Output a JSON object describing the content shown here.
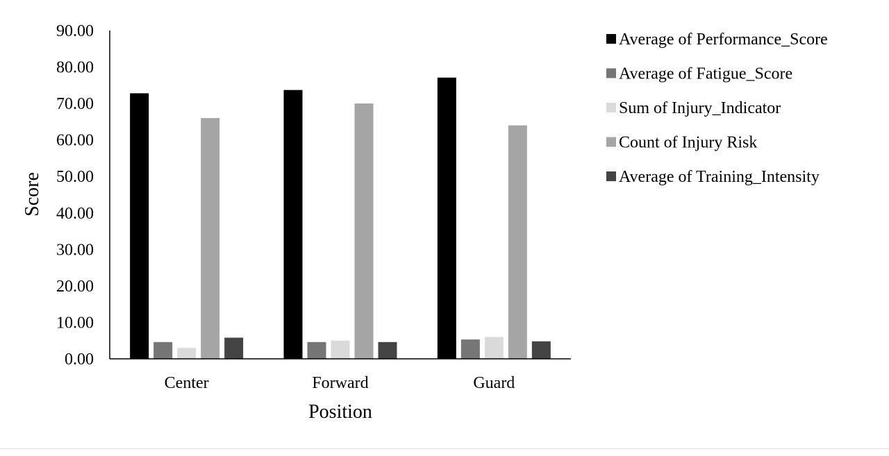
{
  "chart_data": {
    "type": "bar",
    "title": "",
    "xlabel": "Position",
    "ylabel": "Score",
    "ylim": [
      0,
      90
    ],
    "yticks": [
      "0.00",
      "10.00",
      "20.00",
      "30.00",
      "40.00",
      "50.00",
      "60.00",
      "70.00",
      "80.00",
      "90.00"
    ],
    "categories": [
      "Center",
      "Forward",
      "Guard"
    ],
    "grid": false,
    "legend_position": "right",
    "series": [
      {
        "name": "Average of Performance_Score",
        "color": "#000000",
        "values": [
          72.8,
          73.7,
          77.1
        ]
      },
      {
        "name": "Average of Fatigue_Score",
        "color": "#767676",
        "values": [
          4.6,
          4.6,
          5.3
        ]
      },
      {
        "name": "Sum of Injury_Indicator",
        "color": "#dadada",
        "values": [
          3.0,
          5.0,
          6.0
        ]
      },
      {
        "name": "Count of Injury Risk",
        "color": "#a5a5a5",
        "values": [
          66.0,
          70.0,
          64.0
        ]
      },
      {
        "name": "Average of Training_Intensity",
        "color": "#444444",
        "values": [
          5.8,
          4.6,
          4.8
        ]
      }
    ]
  }
}
